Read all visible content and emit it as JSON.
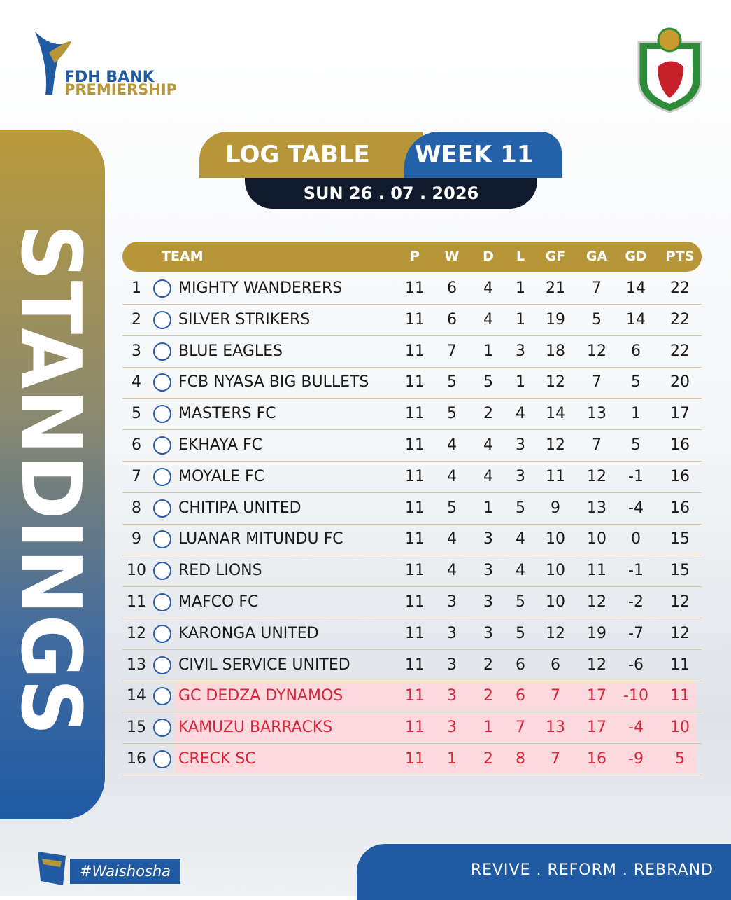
{
  "header": {
    "brand_line1": "FDH BANK",
    "brand_line2": "PREMIERSHIP"
  },
  "side_title": "STANDINGS",
  "title": {
    "left": "LOG TABLE",
    "right": "WEEK 11",
    "date": "SUN 26 . 07 . 2026"
  },
  "table": {
    "columns": [
      "TEAM",
      "P",
      "W",
      "D",
      "L",
      "GF",
      "GA",
      "GD",
      "PTS"
    ],
    "rows": [
      [
        1,
        "MIGHTY WANDERERS",
        11,
        6,
        4,
        1,
        21,
        7,
        14,
        22
      ],
      [
        2,
        "SILVER STRIKERS",
        11,
        6,
        4,
        1,
        19,
        5,
        14,
        22
      ],
      [
        3,
        "BLUE EAGLES",
        11,
        7,
        1,
        3,
        18,
        12,
        6,
        22
      ],
      [
        4,
        "FCB NYASA BIG BULLETS",
        11,
        5,
        5,
        1,
        12,
        7,
        5,
        20
      ],
      [
        5,
        "MASTERS FC",
        11,
        5,
        2,
        4,
        14,
        13,
        1,
        17
      ],
      [
        6,
        "EKHAYA FC",
        11,
        4,
        4,
        3,
        12,
        7,
        5,
        16
      ],
      [
        7,
        "MOYALE FC",
        11,
        4,
        4,
        3,
        11,
        12,
        -1,
        16
      ],
      [
        8,
        "CHITIPA UNITED",
        11,
        5,
        1,
        5,
        9,
        13,
        -4,
        16
      ],
      [
        9,
        "LUANAR MITUNDU FC",
        11,
        4,
        3,
        4,
        10,
        10,
        0,
        15
      ],
      [
        10,
        "RED LIONS",
        11,
        4,
        3,
        4,
        10,
        11,
        -1,
        15
      ],
      [
        11,
        "MAFCO FC",
        11,
        3,
        3,
        5,
        10,
        12,
        -2,
        12
      ],
      [
        12,
        "KARONGA UNITED",
        11,
        3,
        3,
        5,
        12,
        19,
        -7,
        12
      ],
      [
        13,
        "CIVIL SERVICE UNITED",
        11,
        3,
        2,
        6,
        6,
        12,
        -6,
        11
      ],
      [
        14,
        "GC DEDZA DYNAMOS",
        11,
        3,
        2,
        6,
        7,
        17,
        -10,
        11
      ],
      [
        15,
        "KAMUZU BARRACKS",
        11,
        3,
        1,
        7,
        13,
        17,
        -4,
        10
      ],
      [
        16,
        "CRECK SC",
        11,
        1,
        2,
        8,
        7,
        16,
        -9,
        5
      ]
    ]
  },
  "footer": {
    "hashtag": "#Waishosha",
    "motto": "REVIVE . REFORM . REBRAND"
  }
}
